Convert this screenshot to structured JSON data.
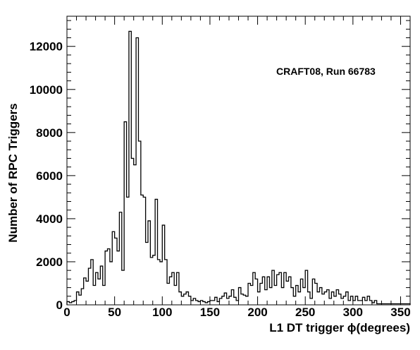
{
  "chart_data": {
    "type": "histogram",
    "annotation": "CRAFT08, Run 66783",
    "xlabel": "L1 DT trigger ϕ(degrees)",
    "ylabel": "Number of RPC Triggers",
    "xlim": [
      0,
      360
    ],
    "ylim": [
      0,
      13400
    ],
    "bin_width": 2.5,
    "x_ticks": [
      0,
      50,
      100,
      150,
      200,
      250,
      300,
      350
    ],
    "y_ticks": [
      0,
      2000,
      4000,
      6000,
      8000,
      10000,
      12000
    ],
    "x_tick_labels": [
      "0",
      "50",
      "100",
      "150",
      "200",
      "250",
      "300",
      "350"
    ],
    "y_tick_labels": [
      "0",
      "2000",
      "4000",
      "6000",
      "8000",
      "10000",
      "12000"
    ],
    "grid": false,
    "legend": "none",
    "line_color": "#000000",
    "values": [
      150,
      100,
      150,
      200,
      600,
      450,
      750,
      1250,
      1100,
      1700,
      2100,
      900,
      1500,
      1200,
      1800,
      900,
      2500,
      2600,
      2000,
      3400,
      3100,
      2500,
      4300,
      1600,
      8500,
      5000,
      12700,
      6800,
      6500,
      12400,
      7600,
      5100,
      5000,
      2900,
      3900,
      2200,
      2300,
      4900,
      2100,
      2000,
      3700,
      2100,
      1000,
      1300,
      1500,
      900,
      1500,
      600,
      400,
      500,
      600,
      400,
      200,
      300,
      200,
      150,
      200,
      150,
      100,
      150,
      200,
      200,
      350,
      150,
      300,
      400,
      550,
      300,
      400,
      700,
      350,
      200,
      800,
      500,
      450,
      400,
      1000,
      900,
      1500,
      1200,
      600,
      1000,
      1300,
      700,
      1300,
      800,
      1600,
      900,
      1400,
      1500,
      800,
      1500,
      1100,
      1300,
      800,
      400,
      900,
      600,
      1200,
      800,
      1600,
      600,
      300,
      1200,
      1000,
      600,
      800,
      500,
      600,
      700,
      300,
      600,
      400,
      700,
      500,
      300,
      400,
      600,
      200,
      400,
      200,
      400,
      200,
      200,
      350,
      200,
      400,
      200,
      100,
      200,
      50,
      50,
      50,
      50,
      50,
      50,
      50,
      50,
      50,
      50,
      50,
      50,
      50,
      50
    ]
  }
}
